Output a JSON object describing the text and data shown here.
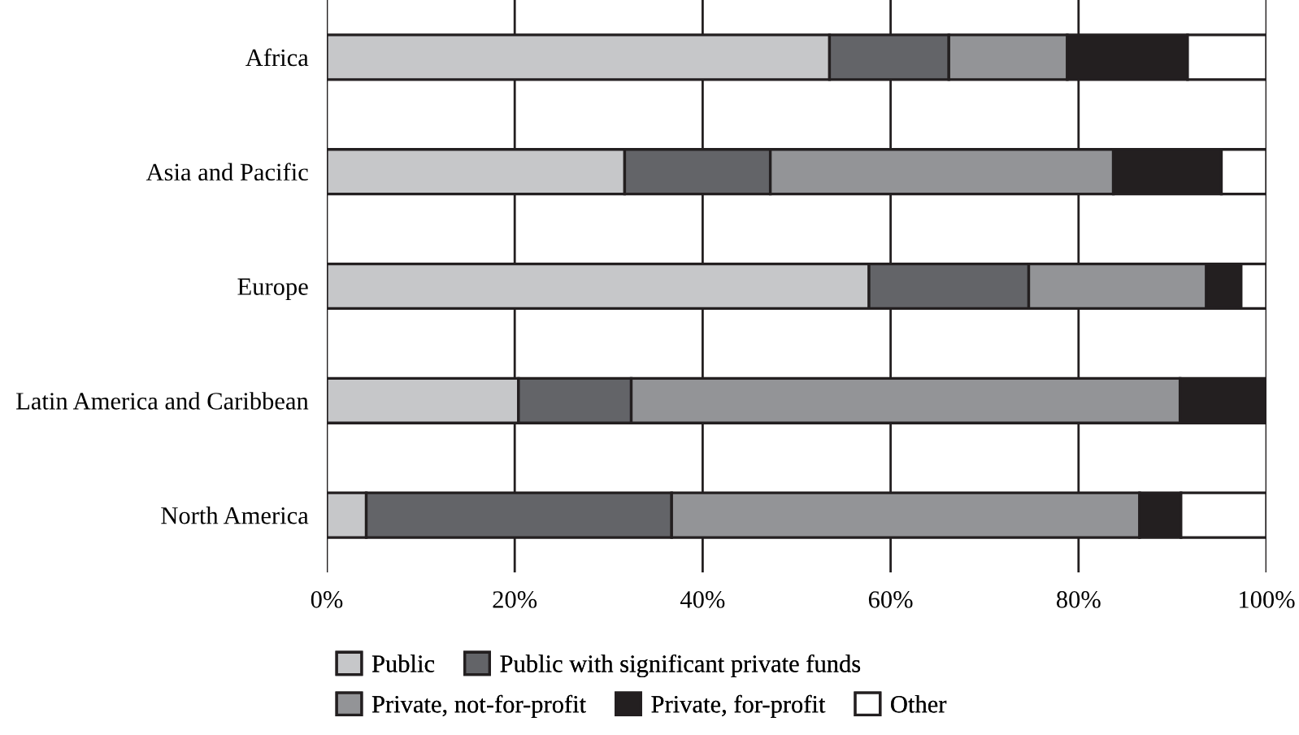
{
  "chart_data": {
    "type": "bar",
    "orientation": "horizontal",
    "stacked": true,
    "categories": [
      "Africa",
      "Asia and Pacific",
      "Europe",
      "Latin America and Caribbean",
      "North America"
    ],
    "series": [
      {
        "name": "Public",
        "color": "#c6c7c9",
        "values": [
          53.5,
          31.7,
          57.7,
          20.4,
          4.2
        ]
      },
      {
        "name": "Public with significant private funds",
        "color": "#636468",
        "values": [
          12.7,
          15.5,
          17.0,
          12.0,
          32.5
        ]
      },
      {
        "name": "Private, not-for-profit",
        "color": "#939497",
        "values": [
          12.6,
          36.5,
          18.9,
          58.4,
          49.8
        ]
      },
      {
        "name": "Private, for-profit",
        "color": "#231f20",
        "values": [
          12.8,
          11.5,
          3.7,
          9.2,
          4.4
        ]
      },
      {
        "name": "Other",
        "color": "#ffffff",
        "values": [
          8.4,
          4.8,
          2.7,
          null,
          9.1
        ]
      }
    ],
    "xlim": [
      0,
      100
    ],
    "xticks": [
      {
        "value": 0,
        "label": "0%"
      },
      {
        "value": 20,
        "label": "20%"
      },
      {
        "value": 40,
        "label": "40%"
      },
      {
        "value": 60,
        "label": "60%"
      },
      {
        "value": 80,
        "label": "80%"
      },
      {
        "value": 100,
        "label": "100%"
      }
    ],
    "grid": "x",
    "legend": "bottom"
  }
}
